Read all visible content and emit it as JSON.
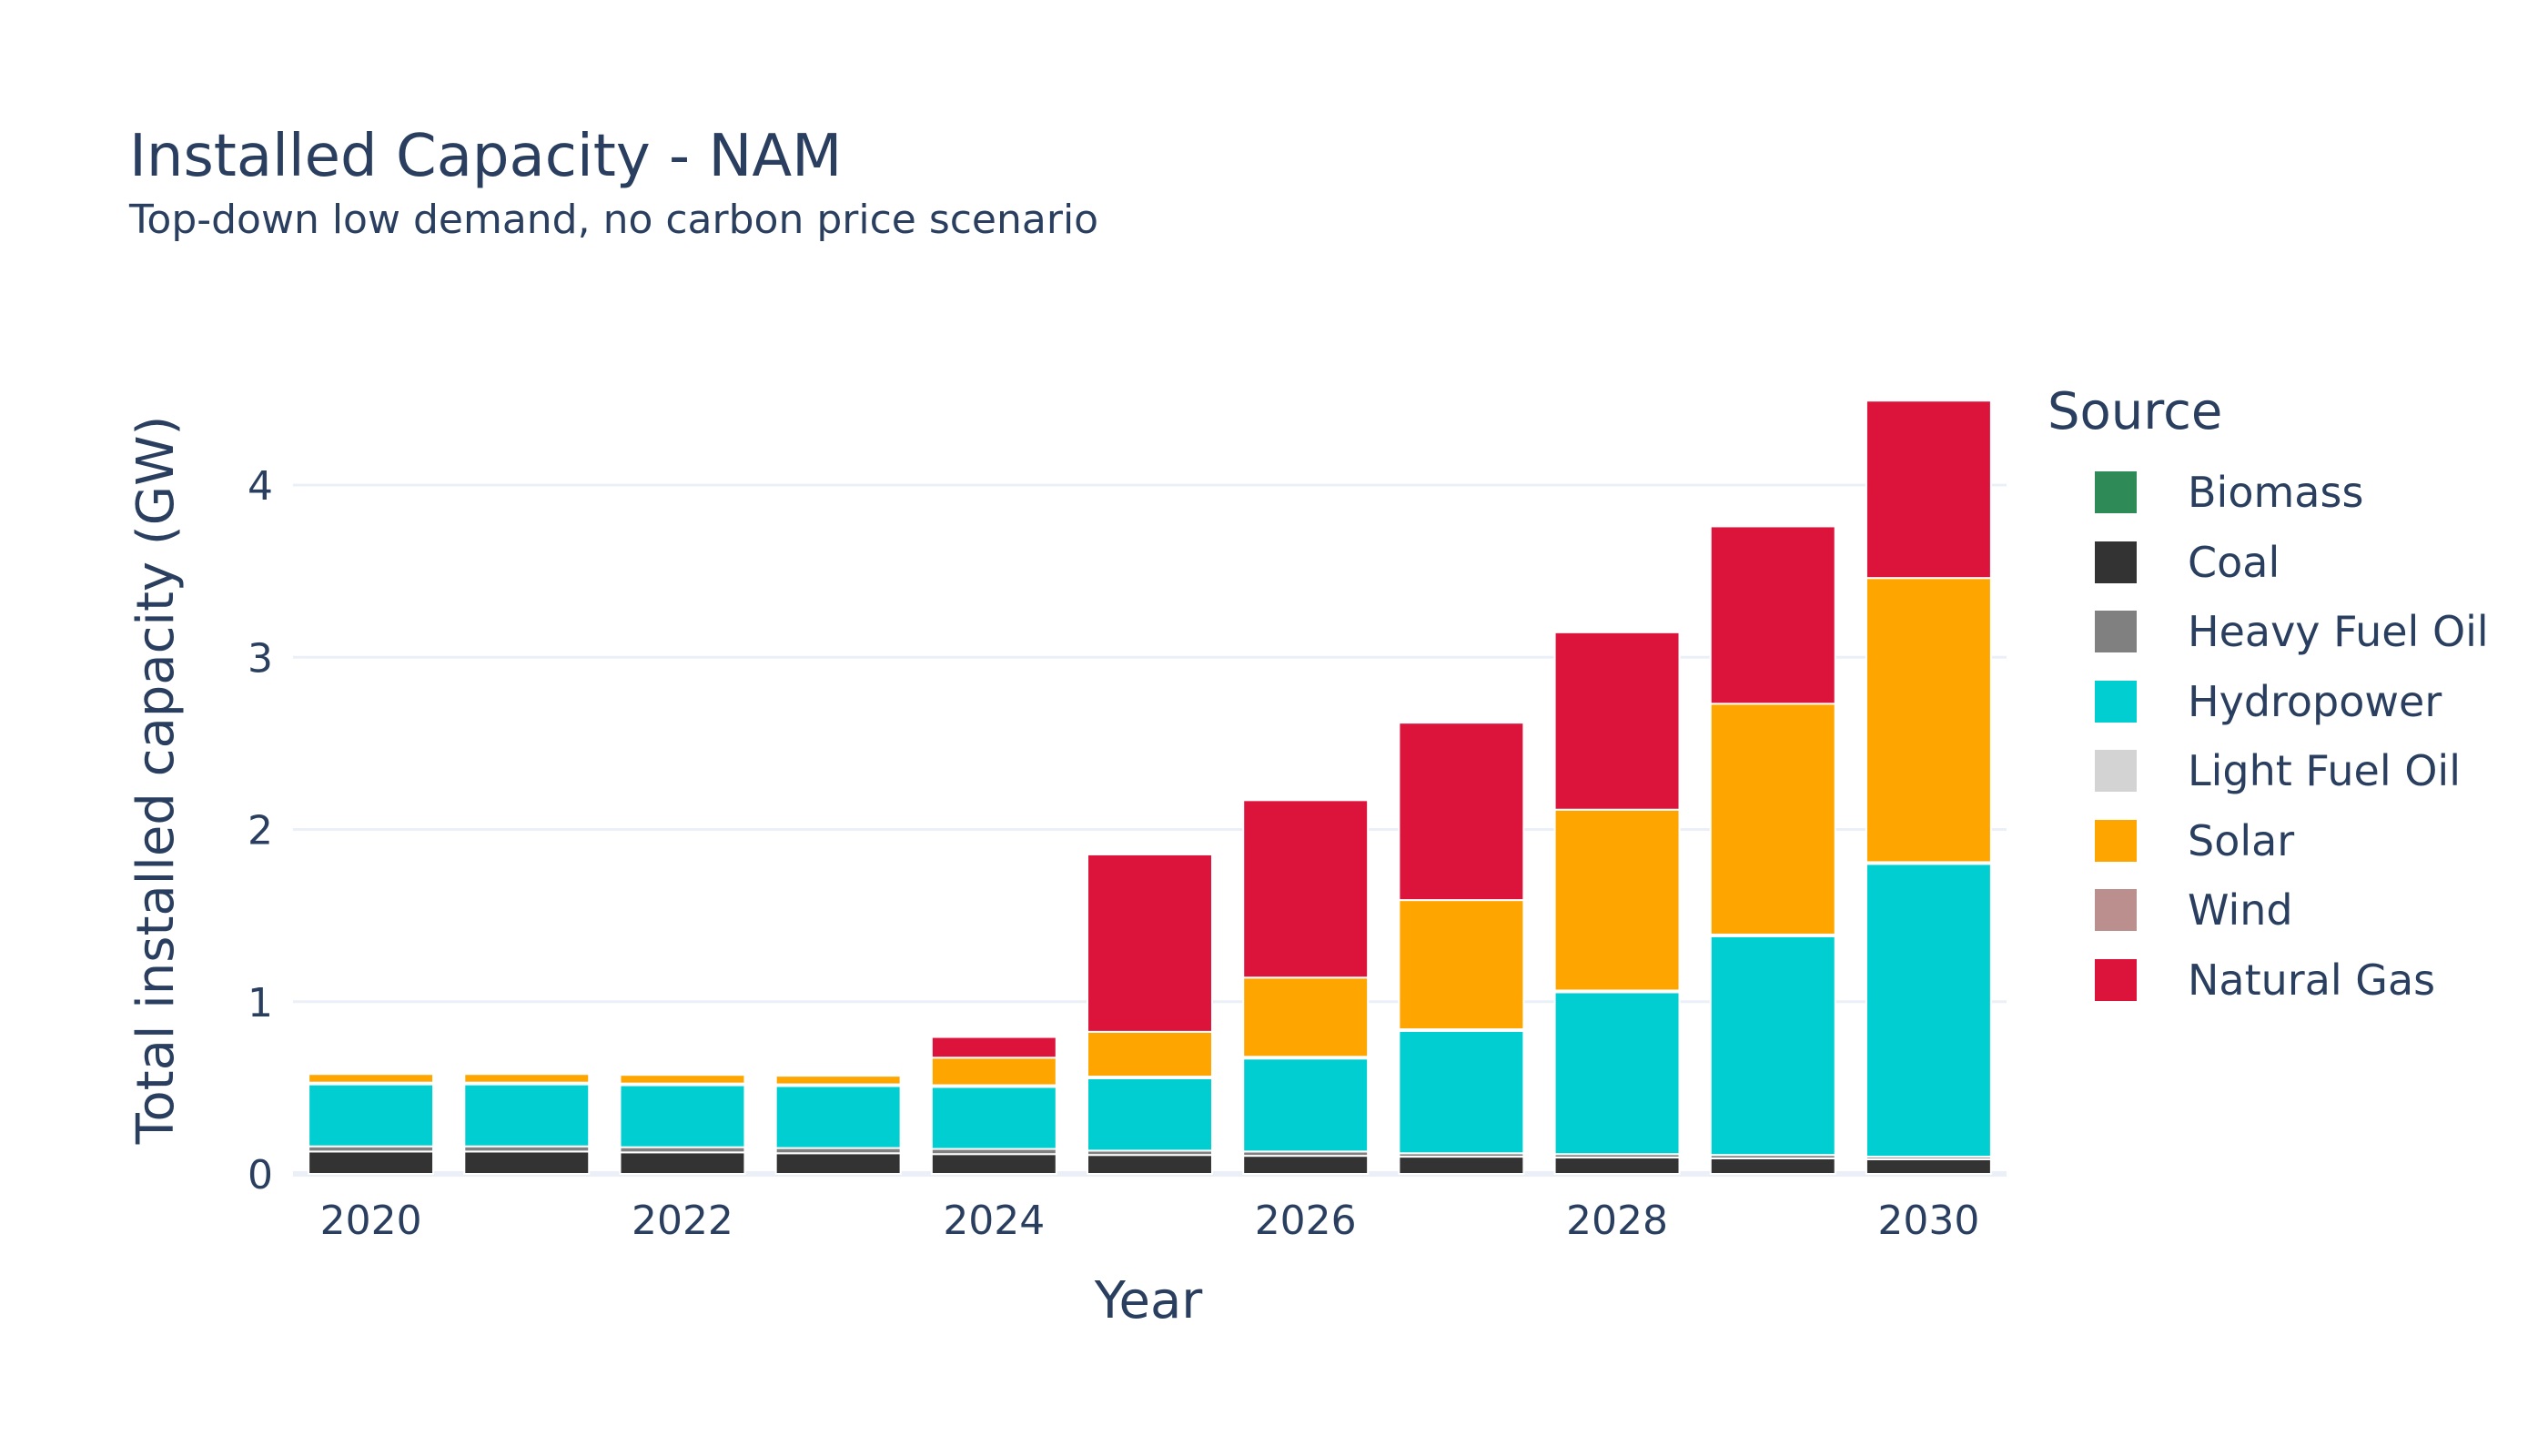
{
  "chart_data": {
    "type": "bar",
    "stacked": true,
    "title": "Installed Capacity - NAM",
    "subtitle": "Top-down low demand, no carbon price scenario",
    "xlabel": "Year",
    "ylabel": "Total installed capacity (GW)",
    "legend_title": "Source",
    "legend_position": "right",
    "grid": true,
    "ylim": [
      0,
      4.65
    ],
    "xlim": [
      2019.5,
      2030.5
    ],
    "x_ticks": [
      2020,
      2022,
      2024,
      2026,
      2028,
      2030
    ],
    "y_ticks": [
      0,
      1,
      2,
      3,
      4
    ],
    "x": [
      2020,
      2021,
      2022,
      2023,
      2024,
      2025,
      2026,
      2027,
      2028,
      2029,
      2030
    ],
    "series": [
      {
        "name": "Biomass",
        "color": "#2e8b57",
        "values": [
          0,
          0,
          0,
          0,
          0,
          0,
          0,
          0,
          0,
          0,
          0
        ]
      },
      {
        "name": "Coal",
        "color": "#333333",
        "values": [
          0.13,
          0.13,
          0.125,
          0.12,
          0.115,
          0.11,
          0.105,
          0.1,
          0.095,
          0.09,
          0.085
        ]
      },
      {
        "name": "Heavy Fuel Oil",
        "color": "#808080",
        "values": [
          0.03,
          0.03,
          0.03,
          0.03,
          0.03,
          0.025,
          0.025,
          0.02,
          0.02,
          0.02,
          0.015
        ]
      },
      {
        "name": "Hydropower",
        "color": "#00ced1",
        "values": [
          0.36,
          0.36,
          0.36,
          0.36,
          0.36,
          0.42,
          0.54,
          0.71,
          0.94,
          1.27,
          1.7
        ]
      },
      {
        "name": "Light Fuel Oil",
        "color": "#d3d3d3",
        "values": [
          0.01,
          0.01,
          0.01,
          0.01,
          0.01,
          0.01,
          0.01,
          0.01,
          0.01,
          0.01,
          0.01
        ]
      },
      {
        "name": "Solar",
        "color": "#ffa500",
        "values": [
          0.05,
          0.05,
          0.05,
          0.05,
          0.16,
          0.26,
          0.46,
          0.75,
          1.05,
          1.34,
          1.65
        ]
      },
      {
        "name": "Wind",
        "color": "#bc8f8f",
        "values": [
          0,
          0,
          0,
          0,
          0,
          0,
          0,
          0,
          0,
          0,
          0
        ]
      },
      {
        "name": "Natural Gas",
        "color": "#dc143c",
        "values": [
          0,
          0,
          0,
          0,
          0.12,
          1.03,
          1.03,
          1.03,
          1.03,
          1.03,
          1.03
        ]
      }
    ]
  }
}
